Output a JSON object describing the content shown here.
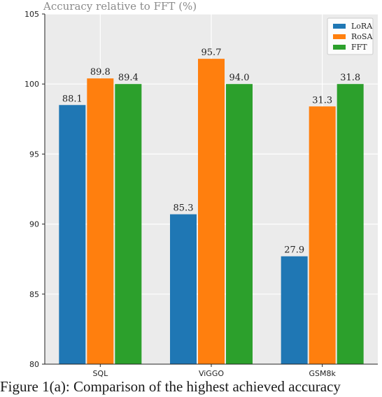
{
  "chart_data": {
    "type": "bar",
    "title": "Accuracy relative to FFT (%)",
    "xlabel": "",
    "ylabel": "",
    "categories": [
      "SQL",
      "ViGGO",
      "GSM8k"
    ],
    "ylim": [
      80,
      105
    ],
    "yticks": [
      "80",
      "85",
      "90",
      "95",
      "100",
      "105"
    ],
    "grid": true,
    "legend_position": "top-right",
    "series": [
      {
        "name": "LoRA",
        "color": "#1f77b4",
        "values": [
          98.5,
          90.7,
          87.7
        ],
        "labels": [
          "88.1",
          "85.3",
          "27.9"
        ]
      },
      {
        "name": "RoSA",
        "color": "#ff7f0e",
        "values": [
          100.4,
          101.8,
          98.4
        ],
        "labels": [
          "89.8",
          "95.7",
          "31.3"
        ]
      },
      {
        "name": "FFT",
        "color": "#2ca02c",
        "values": [
          100.0,
          100.0,
          100.0
        ],
        "labels": [
          "89.4",
          "94.0",
          "31.8"
        ]
      }
    ]
  },
  "caption": "Figure 1(a): Comparison of the highest achieved accuracy"
}
